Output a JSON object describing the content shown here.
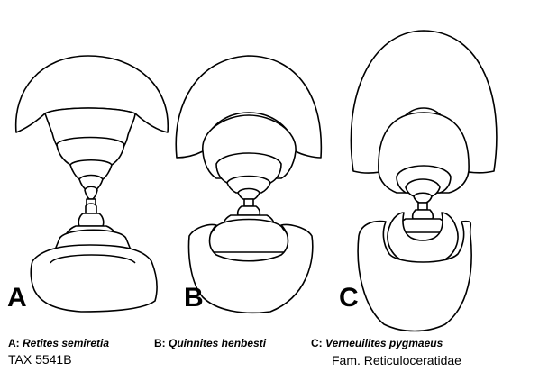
{
  "panels": [
    {
      "letter": "A",
      "caption_key": "A:",
      "species": "Retites semiretia"
    },
    {
      "letter": "B",
      "caption_key": "B:",
      "species": "Quinnites henbesti"
    },
    {
      "letter": "C",
      "caption_key": "C:",
      "species": "Verneuilites pygmaeus"
    }
  ],
  "tax_label": "TAX 5541B",
  "family_label": "Fam. Reticuloceratidae"
}
